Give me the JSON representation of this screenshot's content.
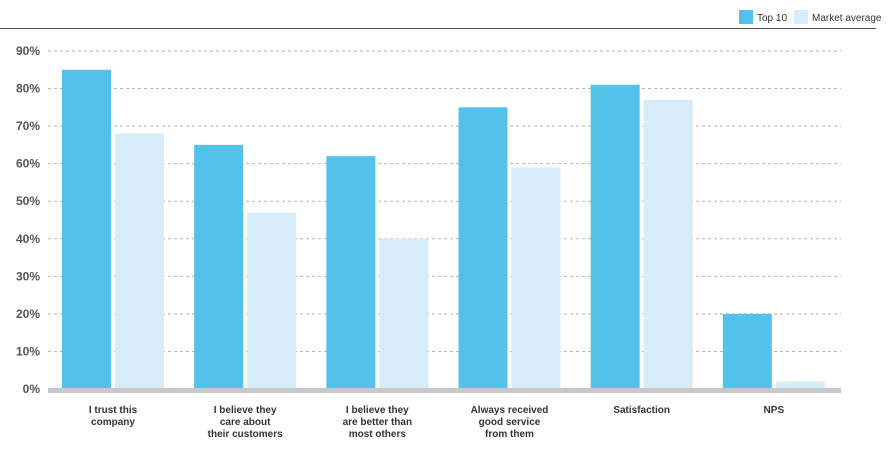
{
  "chart_data": {
    "type": "bar",
    "categories": [
      [
        "I trust this",
        "company"
      ],
      [
        "I believe they",
        "care about",
        "their customers"
      ],
      [
        "I believe they",
        "are better than",
        "most others"
      ],
      [
        "Always received",
        "good service",
        "from them"
      ],
      [
        "Satisfaction"
      ],
      [
        "NPS"
      ]
    ],
    "series": [
      {
        "name": "Top 10",
        "color": "#52c2ea",
        "values": [
          85,
          65,
          62,
          75,
          81,
          20
        ]
      },
      {
        "name": "Market average",
        "color": "#d6ecf8",
        "values": [
          68,
          47,
          40,
          59,
          77,
          2
        ]
      }
    ],
    "yticks": [
      "0%",
      "10%",
      "20%",
      "30%",
      "40%",
      "50%",
      "60%",
      "70%",
      "80%",
      "90%"
    ],
    "ylim": [
      0,
      90
    ],
    "grid": true,
    "legend": "top-right"
  }
}
